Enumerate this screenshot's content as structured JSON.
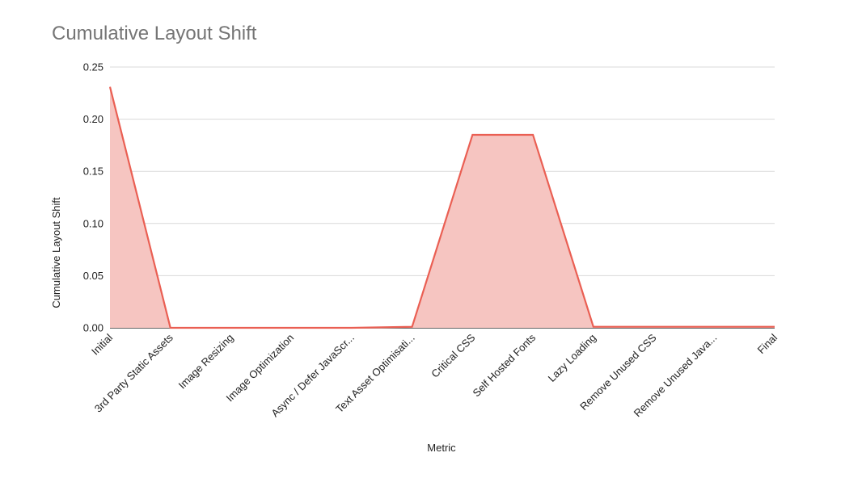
{
  "chart_data": {
    "type": "area",
    "title": "Cumulative Layout Shift",
    "xlabel": "Metric",
    "ylabel": "Cumulative Layout Shift",
    "ylim": [
      0,
      0.25
    ],
    "yticks": [
      "0.00",
      "0.05",
      "0.10",
      "0.15",
      "0.20",
      "0.25"
    ],
    "grid": true,
    "categories": [
      "Initial",
      "3rd Party Static Assets",
      "Image Resizing",
      "Image Optimization",
      "Async / Defer JavaScr...",
      "Text Asset Optimisati...",
      "Critical CSS",
      "Self Hosted Fonts",
      "Lazy Loading",
      "Remove Unused CSS",
      "Remove Unused Java...",
      "Final"
    ],
    "series": [
      {
        "values": [
          0.231,
          0.0,
          0.0,
          0.0,
          0.0,
          0.001,
          0.185,
          0.185,
          0.001,
          0.001,
          0.001,
          0.001
        ]
      }
    ],
    "colors": {
      "line": "#ea5f53",
      "fill": "#f6c5c1",
      "grid": "#d9d9d9",
      "axis": "#333333"
    }
  }
}
